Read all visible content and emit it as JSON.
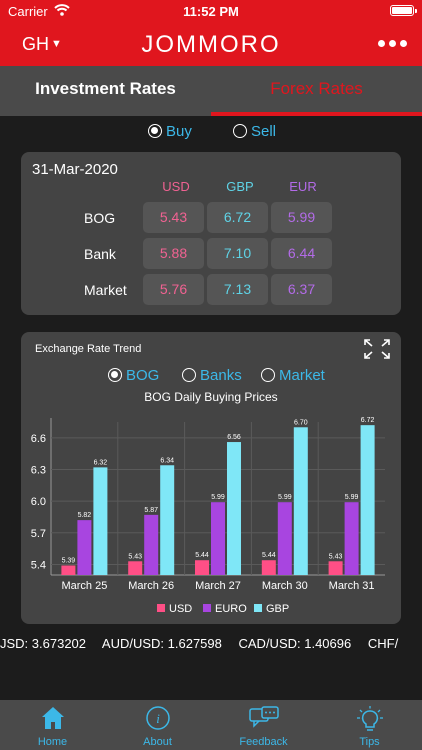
{
  "status_bar": {
    "carrier": "Carrier",
    "time": "11:52 PM"
  },
  "header": {
    "country": "GH",
    "logo": "JOMMORO"
  },
  "tabs": [
    {
      "label": "Investment Rates",
      "active": false
    },
    {
      "label": "Forex Rates",
      "active": true
    }
  ],
  "mode": {
    "buy_label": "Buy",
    "sell_label": "Sell",
    "selected": "Buy"
  },
  "rates": {
    "date": "31-Mar-2020",
    "columns": [
      "USD",
      "GBP",
      "EUR"
    ],
    "rows": [
      {
        "label": "BOG",
        "values": [
          "5.43",
          "6.72",
          "5.99"
        ]
      },
      {
        "label": "Bank",
        "values": [
          "5.88",
          "7.10",
          "6.44"
        ]
      },
      {
        "label": "Market",
        "values": [
          "5.76",
          "7.13",
          "6.37"
        ]
      }
    ]
  },
  "trend": {
    "title": "Exchange Rate Trend",
    "sources": [
      "BOG",
      "Banks",
      "Market"
    ],
    "selected_source": "BOG",
    "subtitle": "BOG Daily Buying Prices"
  },
  "chart_data": {
    "type": "bar",
    "title": "BOG Daily Buying Prices",
    "categories": [
      "March 25",
      "March 26",
      "March 27",
      "March 30",
      "March 31"
    ],
    "series": [
      {
        "name": "USD",
        "color": "#ff4f86",
        "values": [
          5.39,
          5.43,
          5.44,
          5.44,
          5.43
        ]
      },
      {
        "name": "EURO",
        "color": "#a845e0",
        "values": [
          5.82,
          5.87,
          5.99,
          5.99,
          5.99
        ]
      },
      {
        "name": "GBP",
        "color": "#7fe7f7",
        "values": [
          6.32,
          6.34,
          6.56,
          6.7,
          6.72
        ]
      }
    ],
    "yticks": [
      "5.4",
      "5.7",
      "6.0",
      "6.3",
      "6.6"
    ],
    "ylim": [
      5.3,
      6.75
    ],
    "legend": "bottom-center"
  },
  "ticker": [
    "JSD: 3.673202",
    "AUD/USD: 1.627598",
    "CAD/USD: 1.40696",
    "CHF/"
  ],
  "bottom_nav": [
    {
      "label": "Home",
      "icon": "home-icon"
    },
    {
      "label": "About",
      "icon": "info-icon"
    },
    {
      "label": "Feedback",
      "icon": "feedback-icon"
    },
    {
      "label": "Tips",
      "icon": "lightbulb-icon"
    }
  ],
  "colors": {
    "brand": "#e0161e",
    "accent": "#3cb8e8"
  }
}
